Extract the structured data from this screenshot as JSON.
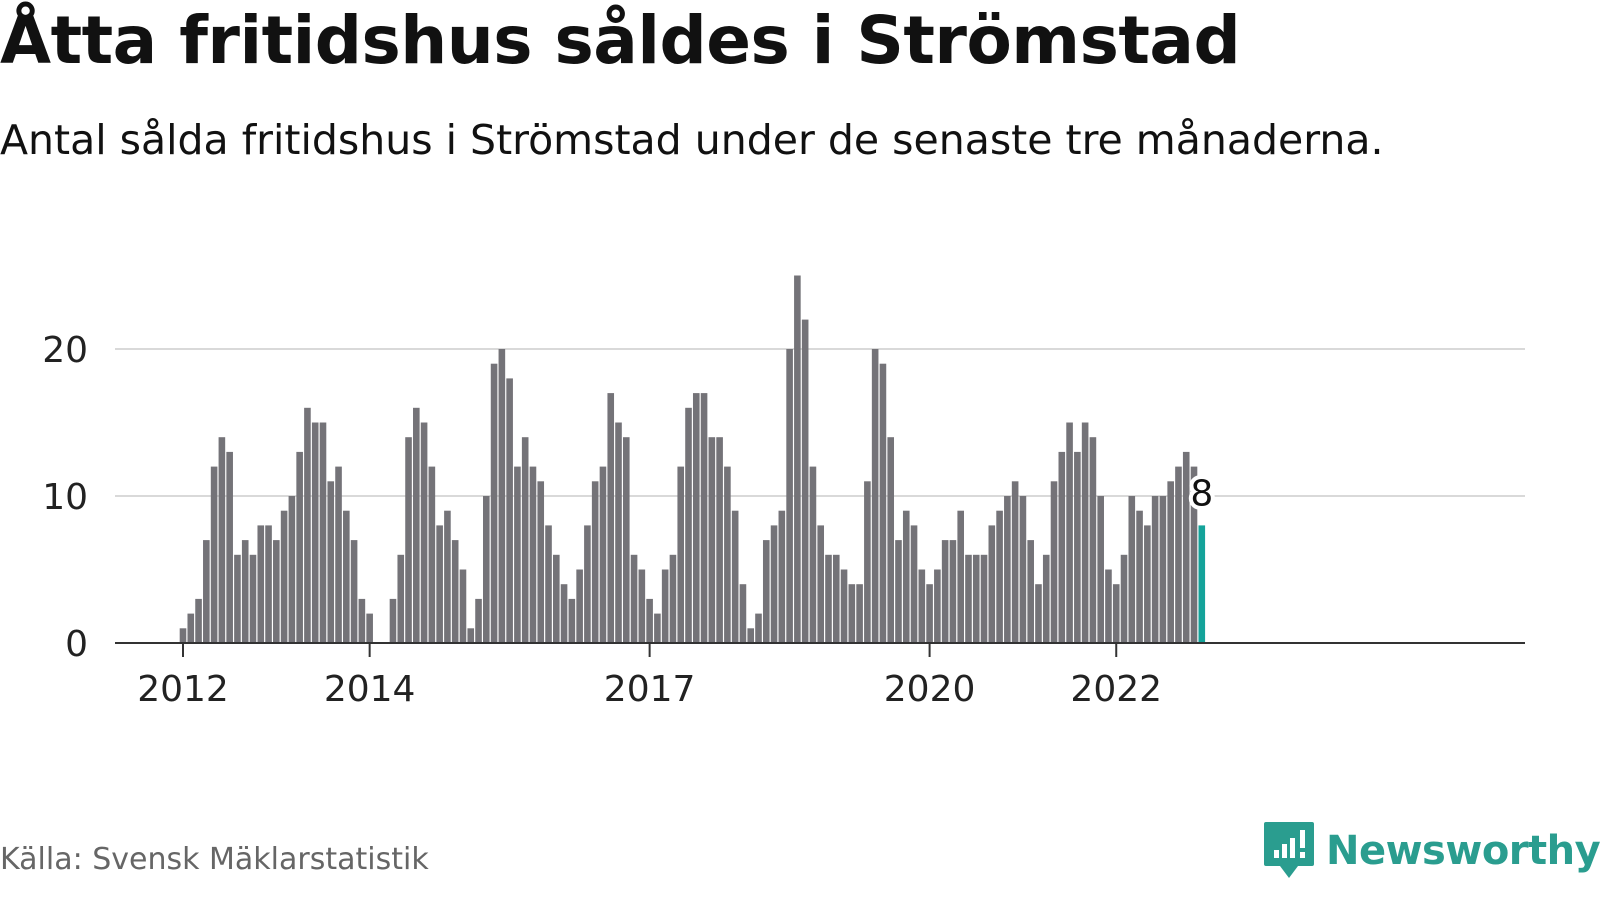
{
  "header": {
    "title": "Åtta fritidshus såldes i Strömstad",
    "subtitle": "Antal sålda fritidshus i Strömstad under de senaste tre månaderna."
  },
  "footer": {
    "source": "Källa: Svensk Mäklarstatistik",
    "brand": "Newsworthy"
  },
  "colors": {
    "bar": "#747378",
    "highlight": "#14a39a",
    "grid": "#d9d9d9",
    "axis": "#333333",
    "brand": "#2a9d8f"
  },
  "chart_data": {
    "type": "bar",
    "title": "Åtta fritidshus såldes i Strömstad",
    "subtitle": "Antal sålda fritidshus i Strömstad under de senaste tre månaderna.",
    "xlabel": "",
    "ylabel": "",
    "ylim": [
      0,
      25
    ],
    "yticks": [
      0,
      10,
      20
    ],
    "xtick_labels": [
      "2012",
      "2014",
      "2017",
      "2020",
      "2022"
    ],
    "grid": true,
    "highlight_label": "8",
    "series": [
      {
        "values": [
          1,
          2,
          3,
          7,
          12,
          14,
          13,
          6,
          7,
          6,
          8,
          8,
          7,
          9,
          10,
          13,
          16,
          15,
          15,
          11,
          12,
          9,
          7,
          3,
          2,
          0,
          0,
          3,
          6,
          14,
          16,
          15,
          12,
          8,
          9,
          7,
          5,
          1,
          3,
          10,
          19,
          20,
          18,
          12,
          14,
          12,
          11,
          8,
          6,
          4,
          3,
          5,
          8,
          11,
          12,
          17,
          15,
          14,
          6,
          5,
          3,
          2,
          5,
          6,
          12,
          16,
          17,
          17,
          14,
          14,
          12,
          9,
          4,
          1,
          2,
          7,
          8,
          9,
          20,
          25,
          22,
          12,
          8,
          6,
          6,
          5,
          4,
          4,
          11,
          20,
          19,
          14,
          7,
          9,
          8,
          5,
          4,
          5,
          7,
          7,
          9,
          6,
          6,
          6,
          8,
          9,
          10,
          11,
          10,
          7,
          4,
          6,
          11,
          13,
          15,
          13,
          15,
          14,
          10,
          5,
          4,
          6,
          10,
          9,
          8,
          10,
          10,
          11,
          12,
          13,
          12,
          8
        ]
      }
    ]
  }
}
